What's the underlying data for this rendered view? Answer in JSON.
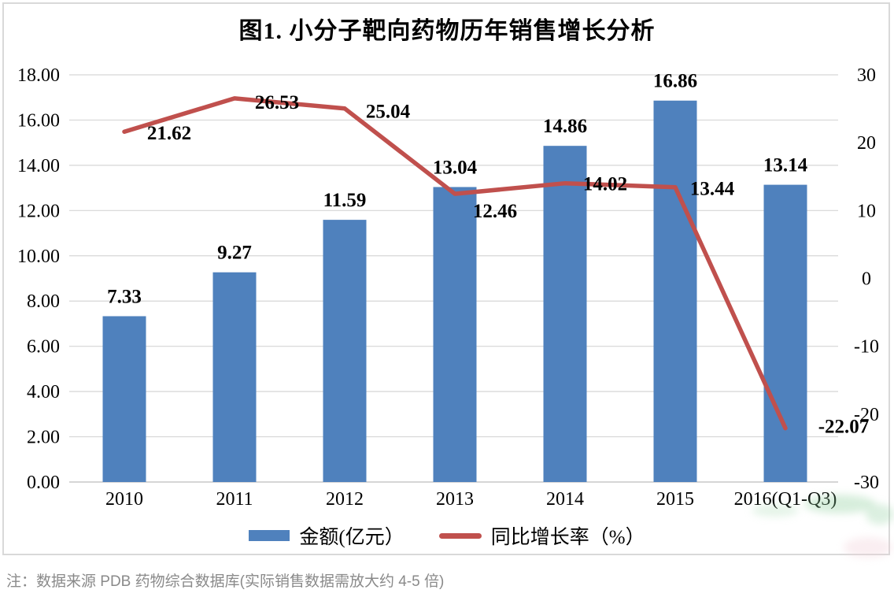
{
  "title": "图1. 小分子靶向药物历年销售增长分析",
  "note": "注：数据来源 PDB 药物综合数据库(实际销售数据需放大约 4-5 倍)",
  "colors": {
    "bar": "#4f81bd",
    "line": "#c0504d",
    "grid": "#d6d6d6",
    "axis_line": "#c9c9c9",
    "tick_text": "#000000",
    "label_text": "#000000",
    "panel_border": "#d9d9d9",
    "note_text": "#8a8a8a"
  },
  "legend": [
    {
      "label": "金额(亿元）",
      "type": "bar"
    },
    {
      "label": "同比增长率（%）",
      "type": "line"
    }
  ],
  "chart_data": {
    "type": "bar",
    "subtype": "bar+line combo",
    "title": "图1. 小分子靶向药物历年销售增长分析",
    "categories": [
      "2010",
      "2011",
      "2012",
      "2013",
      "2014",
      "2015",
      "2016(Q1-Q3)"
    ],
    "series": [
      {
        "name": "金额(亿元）",
        "type": "bar",
        "axis": "left",
        "values": [
          7.33,
          9.27,
          11.59,
          13.04,
          14.86,
          16.86,
          13.14
        ]
      },
      {
        "name": "同比增长率（%）",
        "type": "line",
        "axis": "right",
        "values": [
          21.62,
          26.53,
          25.04,
          12.46,
          14.02,
          13.44,
          -22.07
        ]
      }
    ],
    "left_axis": {
      "min": 0,
      "max": 18,
      "step": 2,
      "tick_labels": [
        "0.00",
        "2.00",
        "4.00",
        "6.00",
        "8.00",
        "10.00",
        "12.00",
        "14.00",
        "16.00",
        "18.00"
      ]
    },
    "right_axis": {
      "min": -30,
      "max": 30,
      "step": 10,
      "tick_labels": [
        "-30",
        "-20",
        "-10",
        "0",
        "10",
        "20",
        "30"
      ]
    },
    "grid": true,
    "legend_position": "bottom",
    "data_labels": true
  }
}
